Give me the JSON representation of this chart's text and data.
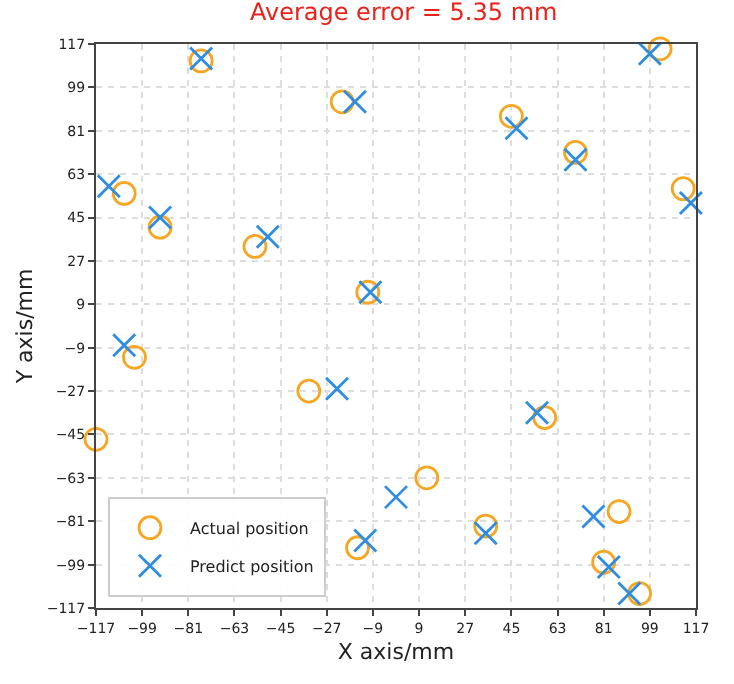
{
  "chart_data": {
    "type": "scatter",
    "title": "Average error = 5.35 mm",
    "xlabel": "X axis/mm",
    "ylabel": "Y axis/mm",
    "xlim": [
      -117,
      117
    ],
    "ylim": [
      -117,
      117
    ],
    "xticks": [
      -117,
      -99,
      -81,
      -63,
      -45,
      -27,
      -9,
      9,
      27,
      45,
      63,
      81,
      99,
      117
    ],
    "yticks": [
      -117,
      -99,
      -81,
      -63,
      -45,
      -27,
      -9,
      9,
      27,
      45,
      63,
      81,
      99,
      117
    ],
    "grid": true,
    "legend": "bottom left",
    "series": [
      {
        "name": "Actual position",
        "color": "#f5a623",
        "marker": "circle",
        "x": [
          -106,
          -92,
          -76,
          -55,
          -21,
          -11,
          45,
          70,
          103,
          112,
          -102,
          -34,
          58,
          -117,
          12,
          35,
          87,
          81,
          95,
          -15
        ],
        "values": [
          55,
          41,
          110,
          33,
          93,
          14,
          87,
          72,
          115,
          57,
          -13,
          -27,
          -38,
          -47,
          -63,
          -83,
          -77,
          -98,
          -111,
          -92
        ]
      },
      {
        "name": "Predict position",
        "color": "#2e8de0",
        "marker": "cross",
        "x": [
          -112,
          -92,
          -76,
          -50,
          -16,
          -10,
          47,
          70,
          99,
          115,
          -106,
          -23,
          55,
          -12,
          0,
          35,
          77,
          83,
          91
        ],
        "values": [
          58,
          45,
          111,
          37,
          93,
          14,
          82,
          69,
          113,
          51,
          -8,
          -26,
          -36,
          -89,
          -71,
          -86,
          -79,
          -100,
          -111
        ]
      }
    ]
  }
}
